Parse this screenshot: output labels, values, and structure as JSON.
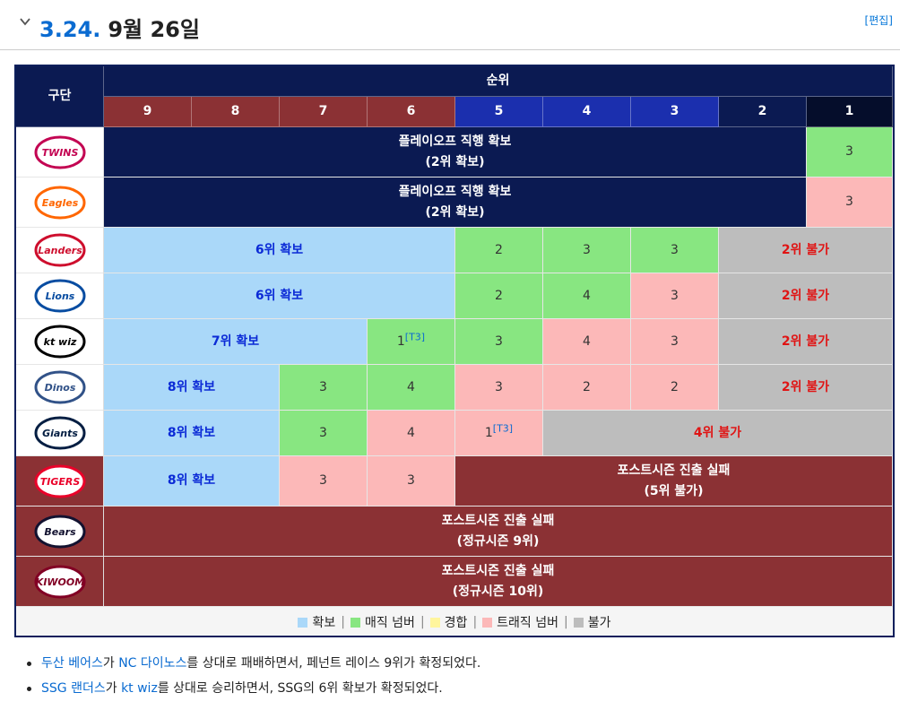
{
  "section": {
    "number": "3.24.",
    "title": "9월 26일",
    "edit_label": "[편집]"
  },
  "header": {
    "team_label": "구단",
    "rank_label": "순위",
    "ranks": [
      {
        "label": "9",
        "color": "#8b3134"
      },
      {
        "label": "8",
        "color": "#8b3134"
      },
      {
        "label": "7",
        "color": "#8b3134"
      },
      {
        "label": "6",
        "color": "#8b3134"
      },
      {
        "label": "5",
        "color": "#1b2fae"
      },
      {
        "label": "4",
        "color": "#1b2fae"
      },
      {
        "label": "3",
        "color": "#1b2fae"
      },
      {
        "label": "2",
        "color": "#0b1a52"
      },
      {
        "label": "1",
        "color": "#050d2b"
      }
    ]
  },
  "teams": [
    {
      "logo_text": "TWINS",
      "logo_icon": "lg-twins-logo",
      "logo_color": "#c30452",
      "cells": [
        {
          "span": 8,
          "style": "navy",
          "line1": "플레이오프 직행 확보",
          "line2": "(2위 확보)"
        },
        {
          "span": 1,
          "style": "green",
          "line1": "3"
        }
      ]
    },
    {
      "logo_text": "Eagles",
      "logo_icon": "hanwha-eagles-logo",
      "logo_color": "#ff6600",
      "cells": [
        {
          "span": 8,
          "style": "navy",
          "line1": "플레이오프 직행 확보",
          "line2": "(2위 확보)"
        },
        {
          "span": 1,
          "style": "pink",
          "line1": "3"
        }
      ]
    },
    {
      "logo_text": "Landers",
      "logo_icon": "ssg-landers-logo",
      "logo_color": "#ce0e2d",
      "cells": [
        {
          "span": 4,
          "style": "blue",
          "line1": "6위 확보"
        },
        {
          "span": 1,
          "style": "green",
          "line1": "2"
        },
        {
          "span": 1,
          "style": "green",
          "line1": "3"
        },
        {
          "span": 1,
          "style": "green",
          "line1": "3"
        },
        {
          "span": 2,
          "style": "gray",
          "line1": "2위 불가"
        }
      ]
    },
    {
      "logo_text": "Lions",
      "logo_icon": "samsung-lions-logo",
      "logo_color": "#074ca1",
      "cells": [
        {
          "span": 4,
          "style": "blue",
          "line1": "6위 확보"
        },
        {
          "span": 1,
          "style": "green",
          "line1": "2"
        },
        {
          "span": 1,
          "style": "green",
          "line1": "4"
        },
        {
          "span": 1,
          "style": "pink",
          "line1": "3"
        },
        {
          "span": 2,
          "style": "gray",
          "line1": "2위 불가"
        }
      ]
    },
    {
      "logo_text": "kt wiz",
      "logo_icon": "kt-wiz-logo",
      "logo_color": "#000000",
      "cells": [
        {
          "span": 3,
          "style": "blue",
          "line1": "7위 확보"
        },
        {
          "span": 1,
          "style": "green",
          "line1": "1",
          "sup": "[T3]"
        },
        {
          "span": 1,
          "style": "green",
          "line1": "3"
        },
        {
          "span": 1,
          "style": "pink",
          "line1": "4"
        },
        {
          "span": 1,
          "style": "pink",
          "line1": "3"
        },
        {
          "span": 2,
          "style": "gray",
          "line1": "2위 불가"
        }
      ]
    },
    {
      "logo_text": "Dinos",
      "logo_icon": "nc-dinos-logo",
      "logo_color": "#315288",
      "cells": [
        {
          "span": 2,
          "style": "blue",
          "line1": "8위 확보"
        },
        {
          "span": 1,
          "style": "green",
          "line1": "3"
        },
        {
          "span": 1,
          "style": "green",
          "line1": "4"
        },
        {
          "span": 1,
          "style": "pink",
          "line1": "3"
        },
        {
          "span": 1,
          "style": "pink",
          "line1": "2"
        },
        {
          "span": 1,
          "style": "pink",
          "line1": "2"
        },
        {
          "span": 2,
          "style": "gray",
          "line1": "2위 불가"
        }
      ]
    },
    {
      "logo_text": "Giants",
      "logo_icon": "lotte-giants-logo",
      "logo_color": "#041e42",
      "cells": [
        {
          "span": 2,
          "style": "blue",
          "line1": "8위 확보"
        },
        {
          "span": 1,
          "style": "green",
          "line1": "3"
        },
        {
          "span": 1,
          "style": "pink",
          "line1": "4"
        },
        {
          "span": 1,
          "style": "pink",
          "line1": "1",
          "sup": "[T3]"
        },
        {
          "span": 4,
          "style": "gray",
          "line1": "4위 불가"
        }
      ]
    },
    {
      "logo_text": "TIGERS",
      "logo_icon": "kia-tigers-logo",
      "logo_color": "#ea0029",
      "logo_bg": "#8b3134",
      "cells": [
        {
          "span": 2,
          "style": "blue",
          "line1": "8위 확보"
        },
        {
          "span": 1,
          "style": "pink",
          "line1": "3"
        },
        {
          "span": 1,
          "style": "pink",
          "line1": "3"
        },
        {
          "span": 5,
          "style": "maroon",
          "line1": "포스트시즌 진출 실패",
          "line2": "(5위 불가)"
        }
      ]
    },
    {
      "logo_text": "Bears",
      "logo_icon": "doosan-bears-logo",
      "logo_color": "#131230",
      "logo_bg": "#8b3134",
      "cells": [
        {
          "span": 9,
          "style": "maroon",
          "line1": "포스트시즌 진출 실패",
          "line2": "(정규시즌 9위)"
        }
      ]
    },
    {
      "logo_text": "KIWOOM",
      "logo_icon": "kiwoom-heroes-logo",
      "logo_color": "#820024",
      "logo_bg": "#8b3134",
      "cells": [
        {
          "span": 9,
          "style": "maroon",
          "line1": "포스트시즌 진출 실패",
          "line2": "(정규시즌 10위)"
        }
      ]
    }
  ],
  "legend": [
    {
      "label": "확보",
      "color": "#aad8f9"
    },
    {
      "label": "매직 넘버",
      "color": "#88e681"
    },
    {
      "label": "경합",
      "color": "#fff59d"
    },
    {
      "label": "트래직 넘버",
      "color": "#fcb8b8"
    },
    {
      "label": "불가",
      "color": "#bdbdbd"
    }
  ],
  "notes": [
    {
      "parts": [
        {
          "text": "두산 베어스",
          "link": true
        },
        {
          "text": "가 "
        },
        {
          "text": "NC 다이노스",
          "link": true
        },
        {
          "text": "를 상대로 패배하면서, 페넌트 레이스 9위가 확정되었다."
        }
      ]
    },
    {
      "parts": [
        {
          "text": "SSG 랜더스",
          "link": true
        },
        {
          "text": "가 "
        },
        {
          "text": "kt wiz",
          "link": true
        },
        {
          "text": "를 상대로 승리하면서, SSG의 6위 확보가 확정되었다."
        }
      ]
    }
  ]
}
